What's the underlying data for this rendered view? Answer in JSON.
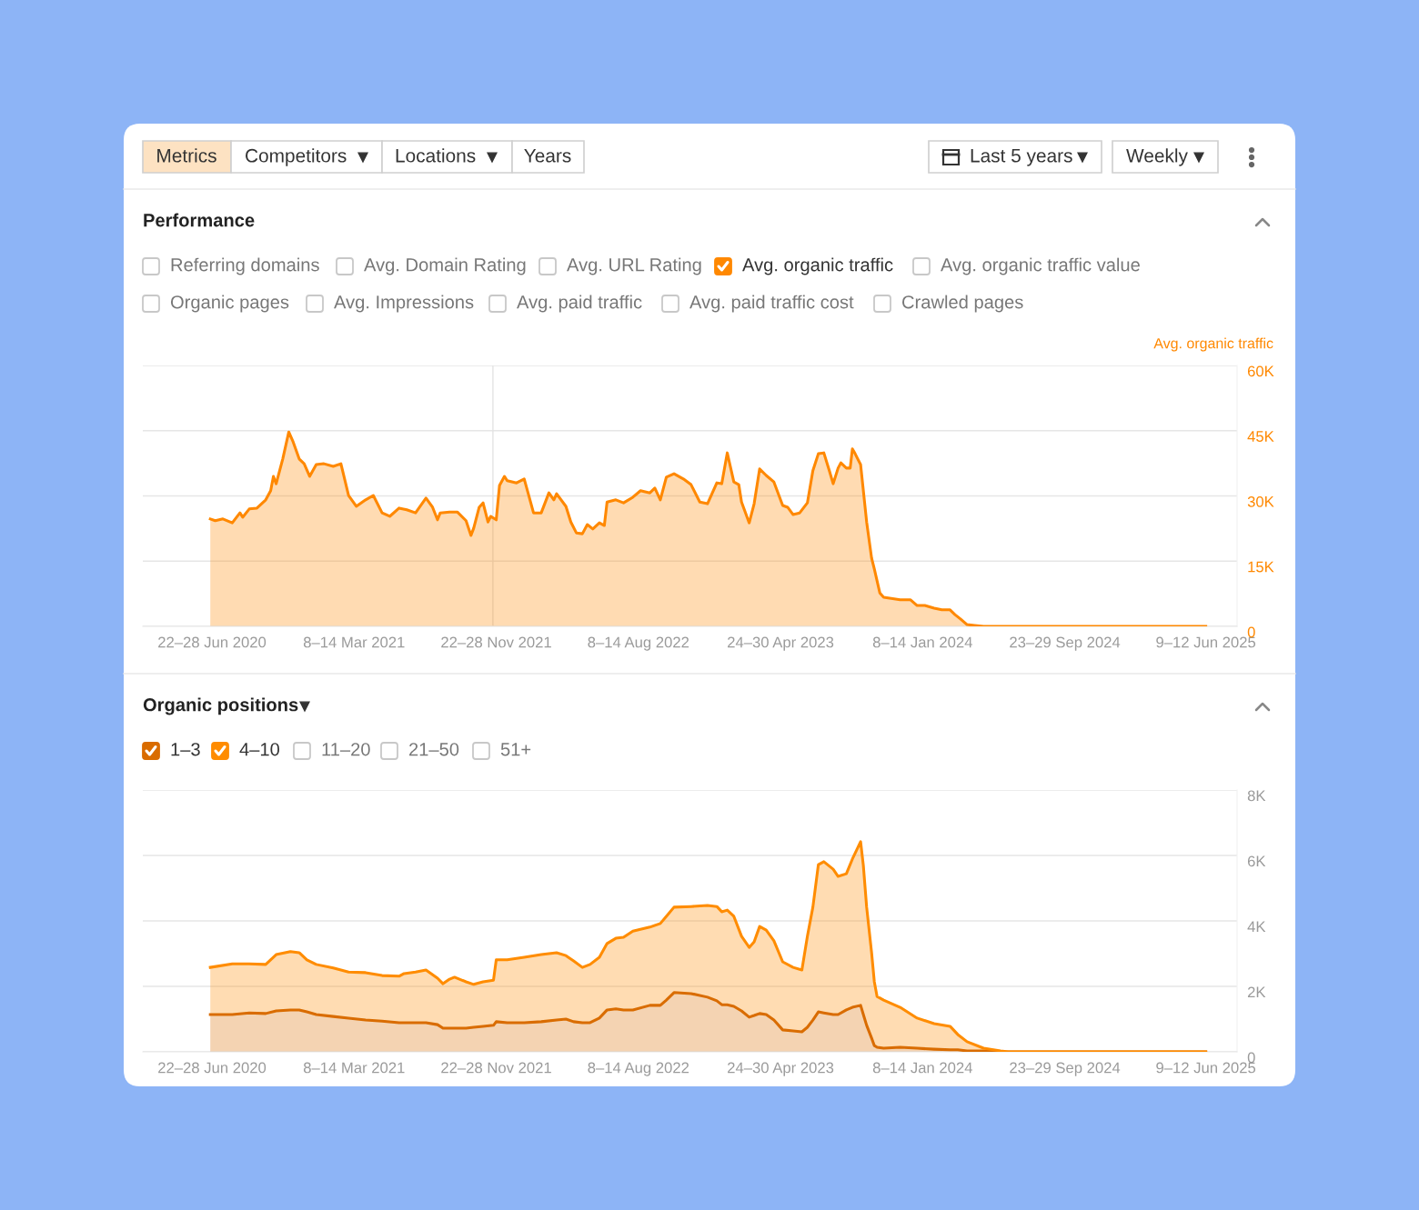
{
  "chart_data": [
    {
      "type": "area",
      "title": "Performance",
      "legend": "top right",
      "grid": "y",
      "annotations": [
        "Metrics",
        "Competitors",
        "Locations",
        "Years",
        "Last 5 years",
        "Weekly",
        "Referring domains",
        "Avg. Domain Rating",
        "Avg. URL Rating",
        "Avg. organic traffic value",
        "Organic pages",
        "Avg. Impressions",
        "Avg. paid traffic",
        "Avg. paid traffic cost",
        "Crawled pages"
      ],
      "x": [
        "2020-06-22",
        "2020-07-01",
        "2020-07-15",
        "2020-08-01",
        "2020-08-15",
        "2020-08-20",
        "2020-09-01",
        "2020-09-15",
        "2020-10-01",
        "2020-10-10",
        "2020-10-15",
        "2020-10-20",
        "2020-11-01",
        "2020-11-12",
        "2020-11-20",
        "2020-12-01",
        "2020-12-10",
        "2020-12-20",
        "2021-01-01",
        "2021-01-15",
        "2021-02-01",
        "2021-02-15",
        "2021-03-01",
        "2021-03-15",
        "2021-04-01",
        "2021-04-15",
        "2021-05-01",
        "2021-05-15",
        "2021-06-01",
        "2021-06-15",
        "2021-07-01",
        "2021-07-15",
        "2021-07-20",
        "2021-08-01",
        "2021-08-10",
        "2021-08-15",
        "2021-09-01",
        "2021-09-15",
        "2021-10-01",
        "2021-10-10",
        "2021-10-15",
        "2021-10-25",
        "2021-11-01",
        "2021-11-10",
        "2021-11-15",
        "2021-11-25",
        "2021-12-01",
        "2021-12-10",
        "2021-12-15",
        "2022-01-01",
        "2022-01-15",
        "2022-02-01",
        "2022-02-15",
        "2022-03-01",
        "2022-03-10",
        "2022-03-15",
        "2022-04-01",
        "2022-04-10",
        "2022-04-20",
        "2022-05-01",
        "2022-05-10",
        "2022-05-20",
        "2022-06-01",
        "2022-06-10",
        "2022-06-15",
        "2022-07-01",
        "2022-07-15",
        "2022-08-01",
        "2022-08-15",
        "2022-09-01",
        "2022-09-10",
        "2022-09-20",
        "2022-10-01",
        "2022-10-15",
        "2022-11-01",
        "2022-11-15",
        "2022-12-01",
        "2022-12-15",
        "2023-01-01",
        "2023-01-10",
        "2023-01-20",
        "2023-02-01",
        "2023-02-10",
        "2023-02-15",
        "2023-03-01",
        "2023-03-10",
        "2023-03-20",
        "2023-04-01",
        "2023-04-15",
        "2023-05-01",
        "2023-05-10",
        "2023-05-20",
        "2023-06-01",
        "2023-06-15",
        "2023-06-25",
        "2023-07-05",
        "2023-07-15",
        "2023-07-25",
        "2023-08-01",
        "2023-08-10",
        "2023-08-15",
        "2023-08-25",
        "2023-09-01",
        "2023-09-05",
        "2023-09-10",
        "2023-09-20",
        "2023-10-01",
        "2023-10-10",
        "2023-10-15",
        "2023-10-25",
        "2023-11-01",
        "2023-12-01",
        "2023-12-20",
        "2024-01-01",
        "2024-01-15",
        "2024-02-01",
        "2024-02-15",
        "2024-03-01",
        "2024-03-10",
        "2024-03-20",
        "2024-04-01",
        "2024-04-15",
        "2024-05-01",
        "2025-06-10"
      ],
      "series": [
        {
          "name": "Avg. organic traffic",
          "color": "#ff8800",
          "values": [
            24700,
            24300,
            24700,
            23800,
            26100,
            25100,
            27000,
            27200,
            29100,
            31200,
            34500,
            32800,
            38500,
            44700,
            42400,
            38500,
            37400,
            34500,
            37200,
            37400,
            36800,
            37400,
            30100,
            27600,
            29100,
            30100,
            26100,
            25300,
            27200,
            26800,
            26100,
            28600,
            29500,
            27400,
            24500,
            26100,
            26300,
            26300,
            24300,
            20900,
            22600,
            27400,
            28400,
            24000,
            25300,
            24500,
            32400,
            34500,
            33500,
            33000,
            33900,
            26100,
            26100,
            30700,
            29100,
            30500,
            27600,
            24000,
            21500,
            21300,
            23400,
            22400,
            23800,
            23200,
            28600,
            29100,
            28400,
            29700,
            31200,
            30700,
            31800,
            29100,
            34300,
            35100,
            33900,
            32600,
            28600,
            28200,
            33000,
            32800,
            39900,
            33200,
            32600,
            28600,
            23800,
            28200,
            36200,
            34700,
            33200,
            27800,
            27400,
            25700,
            26100,
            28400,
            35800,
            39700,
            39900,
            35800,
            32800,
            36400,
            37600,
            36400,
            36400,
            40800,
            39700,
            37200,
            24000,
            15700,
            13200,
            7700,
            6700,
            6100,
            6100,
            4800,
            4800,
            4200,
            3800,
            3800,
            2700,
            1700,
            400,
            200,
            0,
            0
          ]
        }
      ],
      "xlim": [
        "2020-02-20",
        "2025-08-06"
      ],
      "ylim": [
        0,
        60000
      ],
      "xticks": [
        {
          "value": "2020-06-25",
          "label": "22–28 Jun 2020"
        },
        {
          "value": "2021-03-11",
          "label": "8–14 Mar 2021"
        },
        {
          "value": "2021-11-25",
          "label": "22–28 Nov 2021"
        },
        {
          "value": "2022-08-11",
          "label": "8–14 Aug 2022"
        },
        {
          "value": "2023-04-27",
          "label": "24–30 Apr 2023"
        },
        {
          "value": "2024-01-11",
          "label": "8–14 Jan 2024"
        },
        {
          "value": "2024-09-26",
          "label": "23–29 Sep 2024"
        },
        {
          "value": "2025-06-10",
          "label": "9–12 Jun 2025"
        }
      ],
      "yticks": [
        0,
        {
          "value": 15000,
          "label": "15K"
        },
        {
          "value": 30000,
          "label": "30K"
        },
        {
          "value": 45000,
          "label": "45K"
        },
        {
          "value": 60000,
          "label": "60K"
        }
      ],
      "ref_lines": [
        {
          "axis": "x",
          "value": "2021-11-19",
          "color": "#e3e3e3"
        }
      ]
    },
    {
      "type": "area",
      "title": "Organic positions",
      "legend": "top left",
      "grid": "y",
      "stacked": true,
      "annotations": [
        "11–20",
        "21–50",
        "51+"
      ],
      "x": [
        "2020-06-22",
        "2020-08-01",
        "2020-09-01",
        "2020-10-01",
        "2020-10-20",
        "2020-11-15",
        "2020-12-01",
        "2020-12-15",
        "2021-01-01",
        "2021-02-01",
        "2021-03-01",
        "2021-04-01",
        "2021-05-01",
        "2021-06-01",
        "2021-06-10",
        "2021-07-01",
        "2021-07-20",
        "2021-08-10",
        "2021-08-20",
        "2021-09-01",
        "2021-09-10",
        "2021-10-01",
        "2021-10-15",
        "2021-11-01",
        "2021-11-20",
        "2021-11-25",
        "2021-12-15",
        "2022-01-15",
        "2022-02-15",
        "2022-03-15",
        "2022-04-01",
        "2022-04-15",
        "2022-05-01",
        "2022-05-15",
        "2022-06-01",
        "2022-06-15",
        "2022-07-01",
        "2022-07-15",
        "2022-08-01",
        "2022-09-01",
        "2022-09-20",
        "2022-10-01",
        "2022-10-15",
        "2022-11-15",
        "2022-12-15",
        "2023-01-01",
        "2023-01-10",
        "2023-01-20",
        "2023-02-01",
        "2023-02-15",
        "2023-03-01",
        "2023-03-10",
        "2023-03-20",
        "2023-04-01",
        "2023-04-15",
        "2023-05-01",
        "2023-05-20",
        "2023-06-05",
        "2023-06-15",
        "2023-06-25",
        "2023-07-05",
        "2023-07-15",
        "2023-08-01",
        "2023-08-10",
        "2023-08-25",
        "2023-09-05",
        "2023-09-20",
        "2023-09-25",
        "2023-10-01",
        "2023-10-10",
        "2023-10-15",
        "2023-10-20",
        "2023-11-01",
        "2023-12-01",
        "2024-01-01",
        "2024-02-01",
        "2024-03-01",
        "2024-03-15",
        "2024-04-01",
        "2024-05-01",
        "2024-06-01",
        "2024-06-15",
        "2025-06-10"
      ],
      "series": [
        {
          "name": "1–3",
          "color": "#d96c00",
          "values": [
            1140,
            1140,
            1190,
            1170,
            1250,
            1280,
            1280,
            1220,
            1140,
            1080,
            1030,
            970,
            940,
            890,
            890,
            890,
            890,
            830,
            720,
            720,
            720,
            720,
            750,
            780,
            810,
            920,
            890,
            890,
            920,
            970,
            1000,
            920,
            890,
            890,
            1030,
            1280,
            1310,
            1280,
            1280,
            1420,
            1420,
            1580,
            1810,
            1780,
            1670,
            1560,
            1440,
            1440,
            1390,
            1250,
            1060,
            1110,
            1170,
            1140,
            970,
            670,
            640,
            610,
            750,
            970,
            1220,
            1190,
            1140,
            1140,
            1280,
            1360,
            1420,
            1140,
            810,
            420,
            190,
            140,
            110,
            140,
            110,
            80,
            60,
            60,
            30,
            30,
            0,
            0,
            0
          ]
        },
        {
          "name": "4–10",
          "color": "#ff8c00",
          "values": [
            1440,
            1550,
            1500,
            1500,
            1720,
            1780,
            1750,
            1590,
            1530,
            1480,
            1410,
            1450,
            1390,
            1420,
            1500,
            1550,
            1610,
            1420,
            1360,
            1500,
            1560,
            1420,
            1310,
            1360,
            1380,
            1890,
            1920,
            2000,
            2050,
            2060,
            1940,
            1860,
            1690,
            1780,
            1860,
            2030,
            2160,
            2220,
            2410,
            2390,
            2500,
            2560,
            2610,
            2660,
            2800,
            2880,
            2840,
            2890,
            2750,
            2280,
            2130,
            2250,
            2660,
            2580,
            2420,
            2080,
            1940,
            1890,
            2780,
            3450,
            4500,
            4620,
            4440,
            4220,
            4160,
            4530,
            5000,
            4550,
            3610,
            2610,
            1950,
            1550,
            1470,
            1220,
            920,
            780,
            720,
            470,
            280,
            80,
            30,
            0,
            0
          ]
        }
      ],
      "xlim": [
        "2020-02-20",
        "2025-08-06"
      ],
      "ylim": [
        0,
        8000
      ],
      "xticks": [
        {
          "value": "2020-06-25",
          "label": "22–28 Jun 2020"
        },
        {
          "value": "2021-03-11",
          "label": "8–14 Mar 2021"
        },
        {
          "value": "2021-11-25",
          "label": "22–28 Nov 2021"
        },
        {
          "value": "2022-08-11",
          "label": "8–14 Aug 2022"
        },
        {
          "value": "2023-04-27",
          "label": "24–30 Apr 2023"
        },
        {
          "value": "2024-01-11",
          "label": "8–14 Jan 2024"
        },
        {
          "value": "2024-09-26",
          "label": "23–29 Sep 2024"
        },
        {
          "value": "2025-06-10",
          "label": "9–12 Jun 2025"
        }
      ],
      "yticks": [
        0,
        {
          "value": 2000,
          "label": "2K"
        },
        {
          "value": 4000,
          "label": "4K"
        },
        {
          "value": 6000,
          "label": "6K"
        },
        {
          "value": 8000,
          "label": "8K"
        }
      ]
    }
  ]
}
